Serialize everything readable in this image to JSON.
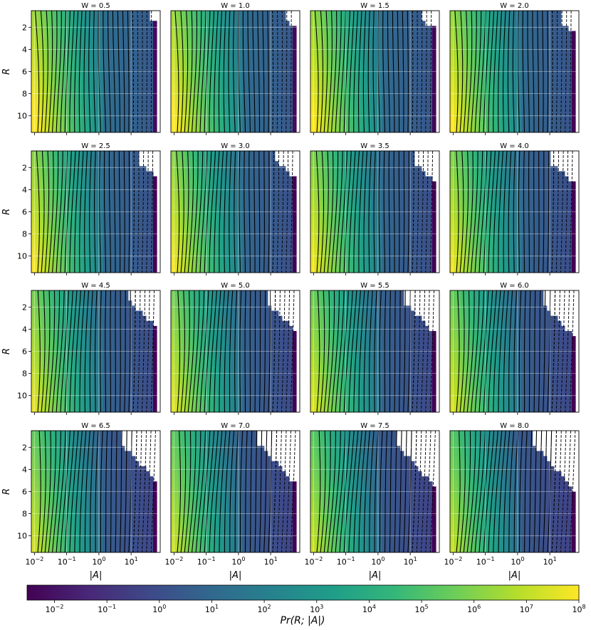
{
  "chart_data": {
    "type": "heatmap",
    "panel_titles": [
      "W = 0.5",
      "W = 1.0",
      "W = 1.5",
      "W = 2.0",
      "W = 2.5",
      "W = 3.0",
      "W = 3.5",
      "W = 4.0",
      "W = 4.5",
      "W = 5.0",
      "W = 5.5",
      "W = 6.0",
      "W = 6.5",
      "W = 7.0",
      "W = 7.5",
      "W = 8.0"
    ],
    "W_values": [
      0.5,
      1.0,
      1.5,
      2.0,
      2.5,
      3.0,
      3.5,
      4.0,
      4.5,
      5.0,
      5.5,
      6.0,
      6.5,
      7.0,
      7.5,
      8.0
    ],
    "xlabel": "|A|",
    "ylabel": "R",
    "x_scale": "log",
    "xlim": [
      0.008,
      80
    ],
    "x_ticks": [
      0.01,
      0.1,
      1,
      10
    ],
    "x_tick_labels": [
      {
        "base": "10",
        "exp": "−2"
      },
      {
        "base": "10",
        "exp": "−1"
      },
      {
        "base": "10",
        "exp": "0"
      },
      {
        "base": "10",
        "exp": "1"
      }
    ],
    "ylim": [
      11.5,
      0.5
    ],
    "y_inverted": true,
    "y_ticks": [
      2,
      4,
      6,
      8,
      10
    ],
    "y_tick_labels": [
      "2",
      "4",
      "6",
      "8",
      "10"
    ],
    "grid": true,
    "colormap": "viridis",
    "colorbar": {
      "label": "Pr(R; |A|)",
      "scale": "log",
      "range": [
        0.003,
        100000000
      ],
      "ticks": [
        0.01,
        0.1,
        1,
        10,
        100,
        1000,
        10000,
        100000,
        1000000,
        10000000,
        100000000
      ],
      "tick_labels": [
        {
          "base": "10",
          "exp": "−2"
        },
        {
          "base": "10",
          "exp": "−1"
        },
        {
          "base": "10",
          "exp": "0"
        },
        {
          "base": "10",
          "exp": "1"
        },
        {
          "base": "10",
          "exp": "2"
        },
        {
          "base": "10",
          "exp": "3"
        },
        {
          "base": "10",
          "exp": "4"
        },
        {
          "base": "10",
          "exp": "5"
        },
        {
          "base": "10",
          "exp": "6"
        },
        {
          "base": "10",
          "exp": "7"
        },
        {
          "base": "10",
          "exp": "8"
        }
      ]
    },
    "contour_levels": [
      6.25,
      6.0,
      5.75,
      5.5,
      5.25,
      5.0,
      4.75,
      4.5,
      4.25,
      4.0,
      3.75,
      3.5,
      3.25,
      3.0,
      2.75,
      2.5,
      2.25,
      2.0,
      1.75,
      1.5,
      1.25,
      1.0,
      0.75,
      0.5,
      0.25,
      0.0,
      -0.25,
      -0.5,
      -0.75
    ]
  }
}
